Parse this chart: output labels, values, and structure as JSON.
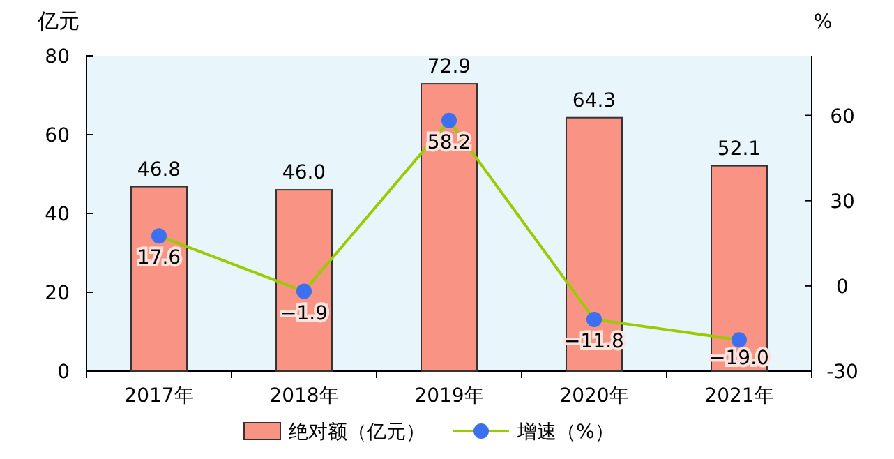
{
  "chart_data": {
    "type": "bar",
    "ylabel": "亿元",
    "y2label": "%",
    "categories": [
      "2017年",
      "2018年",
      "2019年",
      "2020年",
      "2021年"
    ],
    "series": [
      {
        "name": "绝对额（亿元）",
        "color": "#f99383",
        "values": [
          46.8,
          46.0,
          72.9,
          64.3,
          52.1
        ],
        "value_labels": [
          "46.8",
          "46.0",
          "72.9",
          "64.3",
          "52.1"
        ]
      },
      {
        "name": "增速（%）",
        "type": "line",
        "axis": "y2",
        "color": "#99cc00",
        "marker": "circle",
        "values": [
          17.6,
          -1.9,
          58.2,
          -11.8,
          -19.0
        ],
        "value_labels": [
          "17.6",
          "−1.9",
          "58.2",
          "−11.8",
          "−19.0"
        ]
      }
    ],
    "ylim": [
      0,
      80
    ],
    "yticks": [
      0,
      20,
      40,
      60,
      80
    ],
    "y2lim": [
      -30,
      81
    ],
    "y2ticks": [
      -30,
      0,
      30,
      60
    ],
    "legend": "bottom",
    "grid": false
  }
}
